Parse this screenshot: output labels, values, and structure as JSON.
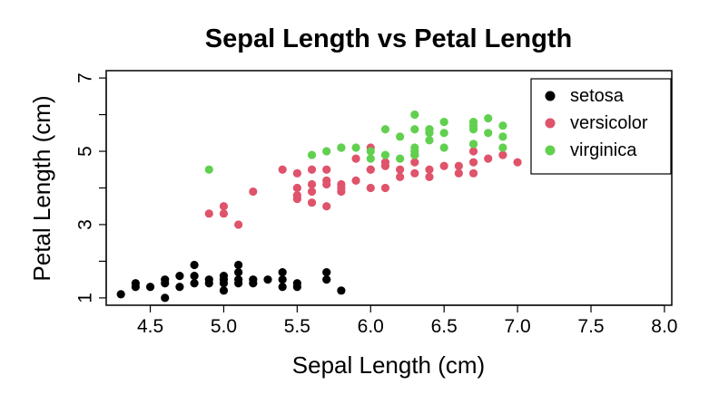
{
  "chart_data": {
    "type": "scatter",
    "title": "Sepal Length vs Petal Length",
    "xlabel": "Sepal Length (cm)",
    "ylabel": "Petal Length (cm)",
    "xlim": [
      4.2,
      8.05
    ],
    "ylim": [
      0.8,
      7.2
    ],
    "x_ticks": [
      4.5,
      5.0,
      5.5,
      6.0,
      6.5,
      7.0,
      7.5,
      8.0
    ],
    "x_tick_labels": [
      "4.5",
      "5.0",
      "5.5",
      "6.0",
      "6.5",
      "7.0",
      "7.5",
      "8.0"
    ],
    "y_ticks": [
      1,
      2,
      3,
      4,
      5,
      6,
      7
    ],
    "y_tick_labels": [
      "1",
      "",
      "3",
      "",
      "5",
      "",
      "7"
    ],
    "legend_position": "top-right",
    "grid": false,
    "series": [
      {
        "name": "setosa",
        "color": "#000000",
        "x": [
          4.3,
          4.4,
          4.4,
          4.5,
          4.6,
          4.6,
          4.6,
          4.7,
          4.7,
          4.8,
          4.8,
          4.8,
          4.9,
          4.9,
          5.0,
          5.0,
          5.0,
          5.0,
          5.1,
          5.1,
          5.1,
          5.1,
          5.2,
          5.2,
          5.3,
          5.4,
          5.4,
          5.4,
          5.5,
          5.5,
          5.7,
          5.7,
          5.8
        ],
        "y": [
          1.1,
          1.3,
          1.4,
          1.3,
          1.0,
          1.4,
          1.5,
          1.3,
          1.6,
          1.4,
          1.6,
          1.9,
          1.4,
          1.5,
          1.2,
          1.4,
          1.5,
          1.6,
          1.4,
          1.5,
          1.7,
          1.9,
          1.4,
          1.5,
          1.5,
          1.3,
          1.5,
          1.7,
          1.3,
          1.4,
          1.5,
          1.7,
          1.2
        ]
      },
      {
        "name": "versicolor",
        "color": "#DF536B",
        "x": [
          4.9,
          5.0,
          5.0,
          5.1,
          5.2,
          5.4,
          5.5,
          5.5,
          5.5,
          5.5,
          5.6,
          5.6,
          5.6,
          5.6,
          5.7,
          5.7,
          5.7,
          5.7,
          5.8,
          5.8,
          5.8,
          5.9,
          5.9,
          6.0,
          6.0,
          6.0,
          6.0,
          6.1,
          6.1,
          6.1,
          6.2,
          6.2,
          6.3,
          6.3,
          6.3,
          6.4,
          6.4,
          6.5,
          6.6,
          6.6,
          6.7,
          6.7,
          6.7,
          6.8,
          6.9,
          7.0
        ],
        "y": [
          3.3,
          3.3,
          3.5,
          3.0,
          3.9,
          4.5,
          3.7,
          3.8,
          4.0,
          4.4,
          3.6,
          3.9,
          4.1,
          4.5,
          3.5,
          4.1,
          4.2,
          4.5,
          3.9,
          4.0,
          4.1,
          4.2,
          4.8,
          4.0,
          4.5,
          4.5,
          5.1,
          4.0,
          4.6,
          4.7,
          4.3,
          4.5,
          4.4,
          4.7,
          4.9,
          4.3,
          4.5,
          4.6,
          4.4,
          4.6,
          4.4,
          4.7,
          5.0,
          4.8,
          4.9,
          4.7
        ]
      },
      {
        "name": "virginica",
        "color": "#61D04F",
        "x": [
          4.9,
          5.6,
          5.7,
          5.8,
          5.8,
          5.9,
          6.0,
          6.0,
          6.1,
          6.1,
          6.2,
          6.2,
          6.3,
          6.3,
          6.3,
          6.3,
          6.3,
          6.4,
          6.4,
          6.4,
          6.4,
          6.5,
          6.5,
          6.5,
          6.7,
          6.7,
          6.7,
          6.7,
          6.8,
          6.8,
          6.9,
          6.9,
          6.9
        ],
        "y": [
          4.5,
          4.9,
          5.0,
          5.1,
          5.1,
          5.1,
          4.8,
          5.0,
          4.9,
          5.6,
          4.8,
          5.4,
          4.9,
          5.0,
          5.1,
          5.6,
          6.0,
          5.3,
          5.5,
          5.6,
          5.6,
          5.1,
          5.5,
          5.8,
          5.2,
          5.6,
          5.7,
          5.8,
          5.5,
          5.9,
          5.1,
          5.4,
          5.7
        ]
      }
    ]
  }
}
